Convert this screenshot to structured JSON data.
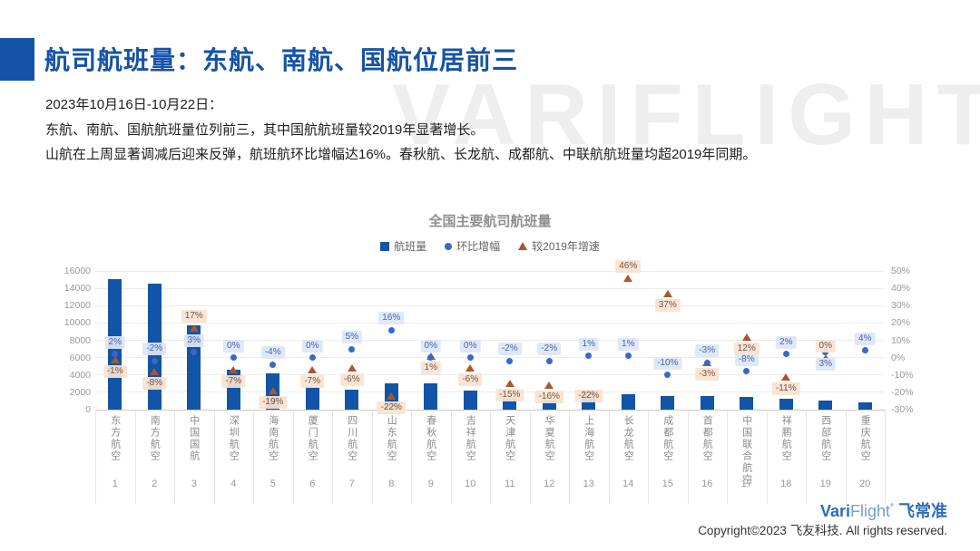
{
  "header": {
    "title": "航司航班量：东航、南航、国航位居前三",
    "accent_color": "#1553a8"
  },
  "intro": {
    "lines": [
      "2023年10月16日-10月22日：",
      "东航、南航、国航航班量位列前三，其中国航航班量较2019年显著增长。",
      "山航在上周显著调减后迎来反弹，航班航环比增幅达16%。春秋航、长龙航、成都航、中联航航班量均超2019年同期。"
    ]
  },
  "watermark_text": "VARIFLIGHT",
  "chart_data": {
    "type": "bar",
    "title": "全国主要航司航班量",
    "legend_position": "top",
    "grid": true,
    "legend": [
      {
        "label": "航班量",
        "marker": "square",
        "color": "#1254a6"
      },
      {
        "label": "环比增幅",
        "marker": "dot",
        "color": "#3a67c9"
      },
      {
        "label": "较2019年增速",
        "marker": "triangle",
        "color": "#a8582e"
      }
    ],
    "categories": [
      "东方航空",
      "南方航空",
      "中国国航",
      "深圳航空",
      "海南航空",
      "厦门航空",
      "四川航空",
      "山东航空",
      "春秋航空",
      "吉祥航空",
      "天津航空",
      "华夏航空",
      "上海航空",
      "长龙航空",
      "成都航空",
      "首都航空",
      "中国联合航空",
      "祥鹏航空",
      "西部航空",
      "重庆航空"
    ],
    "ranks": [
      "1",
      "2",
      "3",
      "4",
      "5",
      "6",
      "7",
      "8",
      "9",
      "10",
      "11",
      "12",
      "13",
      "14",
      "15",
      "16",
      "17",
      "18",
      "19",
      "20"
    ],
    "series": [
      {
        "name": "航班量",
        "type": "bar",
        "axis": "left",
        "values": [
          15100,
          14500,
          9700,
          4600,
          4200,
          2600,
          2300,
          3000,
          3000,
          2200,
          1300,
          1000,
          2200,
          1800,
          1600,
          1550,
          1450,
          1250,
          1050,
          850
        ]
      },
      {
        "name": "环比增幅",
        "type": "scatter",
        "marker": "dot",
        "axis": "right",
        "unit": "%",
        "values": [
          2,
          -2,
          3,
          0,
          -4,
          0,
          5,
          16,
          0,
          0,
          -2,
          -2,
          1,
          1,
          -10,
          -3,
          -8,
          2,
          3,
          4
        ]
      },
      {
        "name": "较2019年增速",
        "type": "scatter",
        "marker": "triangle",
        "axis": "right",
        "unit": "%",
        "values": [
          -1,
          -8,
          17,
          -7,
          -19,
          -7,
          -6,
          -22,
          1,
          -6,
          -15,
          -16,
          -22,
          46,
          37,
          -3,
          12,
          -11,
          0,
          null
        ]
      }
    ],
    "left_axis": {
      "min": 0,
      "max": 16000,
      "step": 2000
    },
    "right_axis": {
      "min": -30,
      "max": 50,
      "step": 10,
      "unit": "%"
    },
    "label_placement": {
      "mom": [
        "above",
        "above",
        "above",
        "above",
        "above",
        "above",
        "above",
        "above",
        "above",
        "above",
        "above",
        "above",
        "above",
        "above",
        "above",
        "above",
        "above",
        "above",
        "below",
        "above"
      ],
      "yoy": [
        "below",
        "below",
        "above",
        "below",
        "below",
        "below",
        "below",
        "below",
        "below",
        "below",
        "below",
        "below",
        "center",
        "above",
        "below",
        "below",
        "below",
        "below",
        "above",
        "below"
      ]
    }
  },
  "footer": {
    "logo": {
      "part1": "Vari",
      "part2": "Flight",
      "degree": "°",
      "part3": "飞常准"
    },
    "copyright": "Copyright©2023 飞友科技. All rights reserved."
  }
}
